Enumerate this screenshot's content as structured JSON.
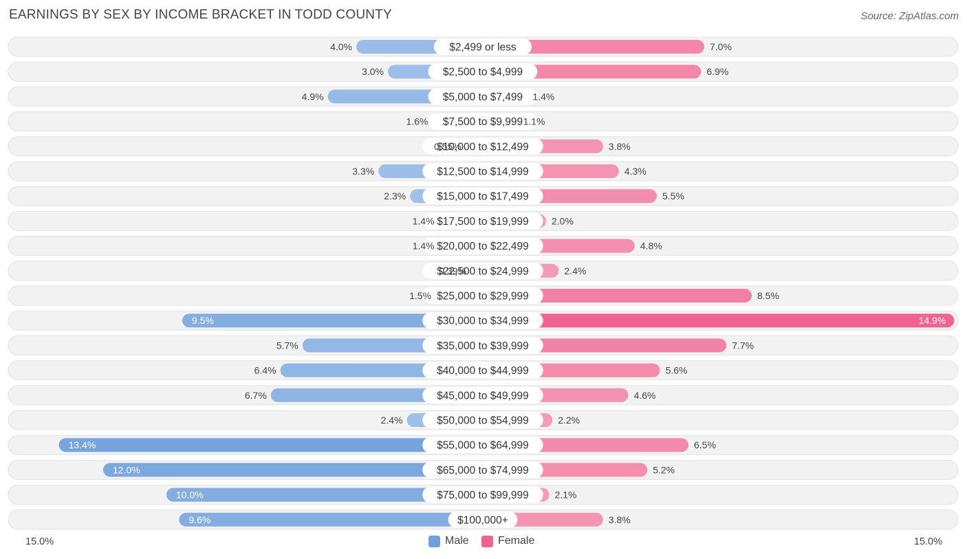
{
  "title": "EARNINGS BY SEX BY INCOME BRACKET IN TODD COUNTY",
  "source": "Source: ZipAtlas.com",
  "colors": {
    "male": "#6fa0dc",
    "male_light": "#a9c6ec",
    "female": "#f06292",
    "female_light": "#f5a6bf",
    "row_bg": "#f2f2f2"
  },
  "legend": {
    "male": "Male",
    "female": "Female"
  },
  "axis": {
    "left_label": "15.0%",
    "right_label": "15.0%"
  },
  "chart_data": {
    "type": "bar",
    "orientation": "horizontal-diverging",
    "title": "EARNINGS BY SEX BY INCOME BRACKET IN TODD COUNTY",
    "xlim": [
      -15.0,
      15.0
    ],
    "categories": [
      "$2,499 or less",
      "$2,500 to $4,999",
      "$5,000 to $7,499",
      "$7,500 to $9,999",
      "$10,000 to $12,499",
      "$12,500 to $14,999",
      "$15,000 to $17,499",
      "$17,500 to $19,999",
      "$20,000 to $22,499",
      "$22,500 to $24,999",
      "$25,000 to $29,999",
      "$30,000 to $34,999",
      "$35,000 to $39,999",
      "$40,000 to $44,999",
      "$45,000 to $49,999",
      "$50,000 to $54,999",
      "$55,000 to $64,999",
      "$65,000 to $74,999",
      "$75,000 to $99,999",
      "$100,000+"
    ],
    "series": [
      {
        "name": "Male",
        "values": [
          4.0,
          3.0,
          4.9,
          1.6,
          0.55,
          3.3,
          2.3,
          1.4,
          1.4,
          0.39,
          1.5,
          9.5,
          5.7,
          6.4,
          6.7,
          2.4,
          13.4,
          12.0,
          10.0,
          9.6
        ],
        "labels": [
          "4.0%",
          "3.0%",
          "4.9%",
          "1.6%",
          "0.55%",
          "3.3%",
          "2.3%",
          "1.4%",
          "1.4%",
          "0.39%",
          "1.5%",
          "9.5%",
          "5.7%",
          "6.4%",
          "6.7%",
          "2.4%",
          "13.4%",
          "12.0%",
          "10.0%",
          "9.6%"
        ]
      },
      {
        "name": "Female",
        "values": [
          7.0,
          6.9,
          1.4,
          1.1,
          3.8,
          4.3,
          5.5,
          2.0,
          4.8,
          2.4,
          8.5,
          14.9,
          7.7,
          5.6,
          4.6,
          2.2,
          6.5,
          5.2,
          2.1,
          3.8
        ],
        "labels": [
          "7.0%",
          "6.9%",
          "1.4%",
          "1.1%",
          "3.8%",
          "4.3%",
          "5.5%",
          "2.0%",
          "4.8%",
          "2.4%",
          "8.5%",
          "14.9%",
          "7.7%",
          "5.6%",
          "4.6%",
          "2.2%",
          "6.5%",
          "5.2%",
          "2.1%",
          "3.8%"
        ]
      }
    ]
  }
}
